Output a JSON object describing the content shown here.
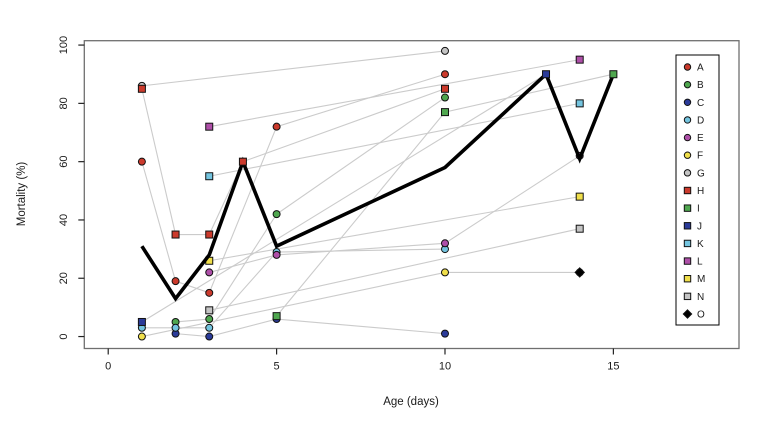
{
  "chart_data": {
    "type": "scatter",
    "title": "",
    "xlabel": "Age (days)",
    "ylabel": "Mortality (%)",
    "xlim": [
      -0.71,
      18.73
    ],
    "ylim": [
      -4.1,
      101.5
    ],
    "xticks": [
      0,
      5,
      10,
      15
    ],
    "yticks": [
      0,
      20,
      40,
      60,
      80,
      100
    ],
    "grid": false,
    "legend_position": "right-inside",
    "colors": {
      "red": "#CB3A2C",
      "green": "#4FA74F",
      "navy": "#2B3B99",
      "lightblue": "#74C4DF",
      "magenta": "#AE4FA8",
      "yellow": "#F0DF4B",
      "gray": "#C4C4C4",
      "black": "#000000",
      "connector_gray": "#CBCBCB"
    },
    "series": [
      {
        "name": "A",
        "marker": "circle",
        "color": "#CB3A2C",
        "points": [
          [
            1,
            60
          ],
          [
            2,
            19
          ],
          [
            3,
            15
          ],
          [
            5,
            72
          ],
          [
            10,
            90
          ]
        ]
      },
      {
        "name": "B",
        "marker": "circle",
        "color": "#4FA74F",
        "points": [
          [
            2,
            5
          ],
          [
            3,
            6
          ],
          [
            5,
            42
          ],
          [
            10,
            82
          ]
        ]
      },
      {
        "name": "C",
        "marker": "circle",
        "color": "#2B3B99",
        "points": [
          [
            2,
            1
          ],
          [
            3,
            0
          ],
          [
            5,
            6
          ],
          [
            10,
            1
          ]
        ]
      },
      {
        "name": "D",
        "marker": "circle",
        "color": "#74C4DF",
        "points": [
          [
            1,
            3
          ],
          [
            2,
            3
          ],
          [
            3,
            3
          ],
          [
            5,
            29
          ],
          [
            10,
            30
          ]
        ]
      },
      {
        "name": "E",
        "marker": "circle",
        "color": "#AE4FA8",
        "points": [
          [
            3,
            22
          ],
          [
            5,
            28
          ],
          [
            10,
            32
          ],
          [
            14,
            62
          ]
        ],
        "behind_trend": [
          3
        ]
      },
      {
        "name": "F",
        "marker": "circle",
        "color": "#F0DF4B",
        "points": [
          [
            1,
            0
          ],
          [
            10,
            22
          ],
          [
            14,
            22
          ]
        ]
      },
      {
        "name": "G",
        "marker": "circle",
        "color": "#C4C4C4",
        "points": [
          [
            1,
            86
          ],
          [
            10,
            98
          ]
        ]
      },
      {
        "name": "H",
        "marker": "square",
        "color": "#CB3A2C",
        "points": [
          [
            1,
            85
          ],
          [
            2,
            35
          ],
          [
            3,
            35
          ],
          [
            4,
            60
          ],
          [
            10,
            85
          ]
        ]
      },
      {
        "name": "I",
        "marker": "square",
        "color": "#4FA74F",
        "points": [
          [
            5,
            7
          ],
          [
            10,
            77
          ],
          [
            15,
            90
          ]
        ]
      },
      {
        "name": "J",
        "marker": "square",
        "color": "#2B3B99",
        "points": [
          [
            1,
            5
          ],
          [
            13,
            90
          ]
        ]
      },
      {
        "name": "K",
        "marker": "square",
        "color": "#74C4DF",
        "points": [
          [
            3,
            55
          ],
          [
            14,
            80
          ]
        ]
      },
      {
        "name": "L",
        "marker": "square",
        "color": "#AE4FA8",
        "points": [
          [
            3,
            72
          ],
          [
            14,
            95
          ]
        ]
      },
      {
        "name": "M",
        "marker": "square",
        "color": "#F0DF4B",
        "points": [
          [
            3,
            26
          ],
          [
            14,
            48
          ]
        ],
        "behind_trend": [
          0
        ]
      },
      {
        "name": "N",
        "marker": "square",
        "color": "#C4C4C4",
        "points": [
          [
            3,
            9
          ],
          [
            14,
            37
          ]
        ]
      },
      {
        "name": "O",
        "marker": "diamond",
        "color": "#000000",
        "points": [
          [
            14,
            22
          ]
        ]
      }
    ],
    "trend_line": {
      "color": "#000000",
      "width": 3.6,
      "points": [
        [
          1,
          31
        ],
        [
          2,
          13
        ],
        [
          3,
          28
        ],
        [
          4,
          60
        ],
        [
          5,
          31
        ],
        [
          10,
          58
        ],
        [
          13,
          90
        ],
        [
          14,
          61
        ],
        [
          15,
          90
        ]
      ]
    }
  }
}
